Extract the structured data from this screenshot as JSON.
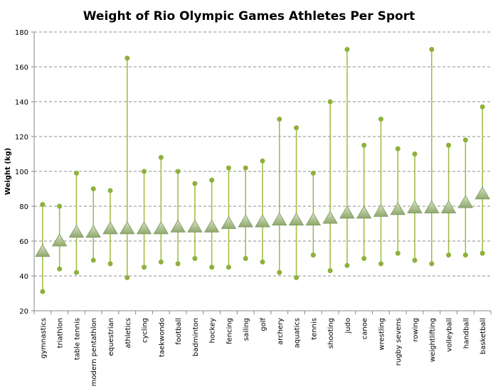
{
  "chart_data": {
    "type": "scatter",
    "title": "Weight of Rio Olympic Games Athletes Per Sport",
    "xlabel": "",
    "ylabel": "Weight (kg)",
    "ylim": [
      20,
      180
    ],
    "yticks": [
      20,
      40,
      60,
      80,
      100,
      120,
      140,
      160,
      180
    ],
    "grid": true,
    "legend": "none",
    "colors": {
      "range": "#9dbb3c",
      "dot": "#8db13a",
      "mean": "#a9c08a",
      "grid": "#8c8c8c"
    },
    "categories": [
      "gymnastics",
      "triathlon",
      "table tennis",
      "modern pentathlon",
      "equestrian",
      "athletics",
      "cycling",
      "taekwondo",
      "football",
      "badminton",
      "hockey",
      "fencing",
      "sailing",
      "golf",
      "archery",
      "aquatics",
      "tennis",
      "shooting",
      "judo",
      "canoe",
      "wrestling",
      "rugby sevens",
      "rowing",
      "weightlifting",
      "volleyball",
      "handball",
      "basketball"
    ],
    "series": [
      {
        "role": "mean",
        "values": [
          54,
          60,
          65,
          65,
          67,
          67,
          67,
          67,
          68,
          68,
          68,
          70,
          71,
          71,
          72,
          72,
          72,
          73,
          76,
          76,
          77,
          78,
          79,
          79,
          79,
          82,
          87
        ]
      },
      {
        "role": "max",
        "values": [
          81,
          80,
          99,
          90,
          89,
          165,
          100,
          108,
          100,
          93,
          95,
          102,
          102,
          106,
          130,
          125,
          99,
          140,
          170,
          115,
          130,
          113,
          110,
          170,
          115,
          118,
          137
        ]
      },
      {
        "role": "min",
        "values": [
          31,
          44,
          42,
          49,
          47,
          39,
          45,
          48,
          47,
          50,
          45,
          45,
          50,
          48,
          42,
          39,
          52,
          43,
          46,
          50,
          47,
          53,
          49,
          47,
          52,
          52,
          53
        ]
      }
    ]
  }
}
